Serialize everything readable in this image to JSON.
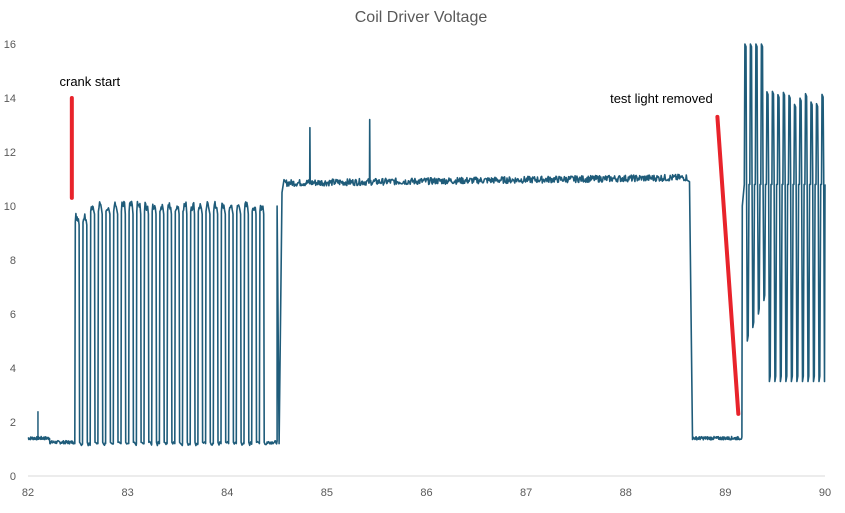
{
  "chart_data": {
    "type": "line",
    "title": "Coil Driver Voltage",
    "xlabel": "",
    "ylabel": "",
    "xlim": [
      82,
      90
    ],
    "ylim": [
      0,
      16
    ],
    "x_ticks": [
      "82",
      "83",
      "84",
      "85",
      "86",
      "87",
      "88",
      "89",
      "90"
    ],
    "y_ticks": [
      "0",
      "2",
      "4",
      "6",
      "8",
      "10",
      "12",
      "14",
      "16"
    ],
    "grid": false,
    "legend": "none",
    "series_color": "#1f5c7a",
    "annotation_color": "#e8232b",
    "segments": {
      "idle_pre": {
        "x": [
          82.0,
          82.22
        ],
        "level": 1.4
      },
      "idle_low": {
        "x": [
          82.22,
          82.47
        ],
        "level": 1.25
      },
      "crank_pulses": {
        "x_start": 82.47,
        "x_end": 84.4,
        "count": 25,
        "high": 10.0,
        "low": 1.2
      },
      "run_high": {
        "x": [
          84.57,
          88.62
        ],
        "level": 10.85
      },
      "spikes": [
        {
          "x": 84.83,
          "y": 12.9
        },
        {
          "x": 85.43,
          "y": 13.2
        },
        {
          "x": 82.1,
          "y": 2.4
        }
      ],
      "idle_post": {
        "x": [
          88.62,
          89.17
        ],
        "level": 1.4
      },
      "post_pulses": {
        "x_start": 89.17,
        "x_end": 90.0,
        "count": 15,
        "high": 14.0,
        "low": 3.5,
        "mid": 10.8
      }
    },
    "annotations": [
      {
        "label": "crank start",
        "line_from": [
          82.44,
          14.0
        ],
        "line_to": [
          82.44,
          10.3
        ]
      },
      {
        "label": "test light removed",
        "line_from": [
          88.92,
          13.3
        ],
        "line_to": [
          89.13,
          2.3
        ]
      }
    ]
  }
}
